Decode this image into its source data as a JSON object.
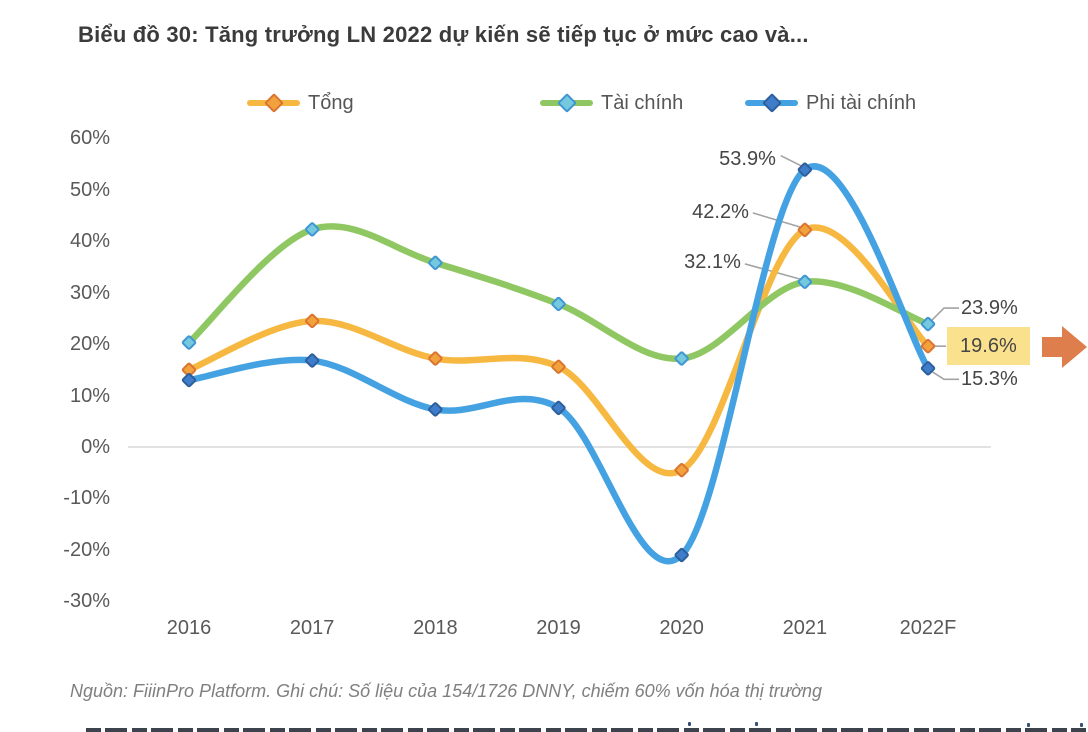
{
  "title": "Biểu đồ 30: Tăng trưởng LN 2022 dự kiến sẽ tiếp tục ở mức cao và...",
  "footnote": "Nguồn: FiiinPro Platform. Ghi chú: Số liệu của 154/1726 DNNY, chiếm 60% vốn hóa thị trường",
  "chart_data": {
    "type": "line",
    "title": "Biểu đồ 30: Tăng trưởng LN 2022 dự kiến sẽ tiếp tục ở mức cao và...",
    "x": [
      "2016",
      "2017",
      "2018",
      "2019",
      "2020",
      "2021",
      "2022F"
    ],
    "series": [
      {
        "name": "Tổng",
        "color": "#f6b841",
        "marker_fill": "#f2a23c",
        "marker_stroke": "#db7431",
        "values": [
          15.0,
          24.5,
          17.2,
          15.6,
          -4.5,
          42.2,
          19.6
        ]
      },
      {
        "name": "Tài chính",
        "color": "#8fc862",
        "marker_fill": "#74c9de",
        "marker_stroke": "#3f96d2",
        "values": [
          20.3,
          42.3,
          35.8,
          27.8,
          17.2,
          32.1,
          23.9
        ]
      },
      {
        "name": "Phi tài chính",
        "color": "#45a2e2",
        "marker_fill": "#3f7dcb",
        "marker_stroke": "#2d5f9c",
        "values": [
          13.0,
          16.8,
          7.3,
          7.6,
          -21.0,
          53.9,
          15.3
        ]
      }
    ],
    "ylim": [
      -30,
      60
    ],
    "ytick_labels": [
      "60%",
      "50%",
      "40%",
      "30%",
      "20%",
      "10%",
      "0%",
      "-10%",
      "-20%",
      "-30%"
    ],
    "ytick_values": [
      60,
      50,
      40,
      30,
      20,
      10,
      0,
      -10,
      -20,
      -30
    ],
    "gridlines": "zero-axis-only",
    "legend_position": "top",
    "annotations": [
      {
        "text": "53.9%",
        "series": "Phi tài chính",
        "x": "2021",
        "value": 53.9
      },
      {
        "text": "42.2%",
        "series": "Tổng",
        "x": "2021",
        "value": 42.2
      },
      {
        "text": "32.1%",
        "series": "Tài chính",
        "x": "2021",
        "value": 32.1
      },
      {
        "text": "23.9%",
        "series": "Tài chính",
        "x": "2022F",
        "value": 23.9
      },
      {
        "text": "19.6%",
        "series": "Tổng",
        "x": "2022F",
        "value": 19.6,
        "highlight": "#fae18e"
      },
      {
        "text": "15.3%",
        "series": "Phi tài chính",
        "x": "2022F",
        "value": 15.3
      }
    ],
    "arrow_color": "#dd7e4c",
    "axis_color": "#d9d9d9",
    "leader_color": "#a3a3a3"
  }
}
